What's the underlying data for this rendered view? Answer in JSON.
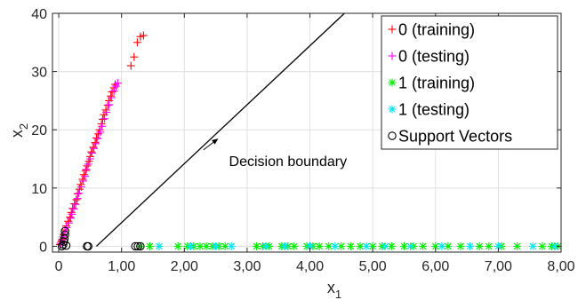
{
  "chart_data": {
    "type": "scatter",
    "xlabel": "x",
    "xlabel_sub": "1",
    "ylabel": "x",
    "ylabel_sub": "2",
    "xlim": [
      -0.1,
      8.0
    ],
    "ylim": [
      -1,
      40
    ],
    "xticks": [
      0,
      1,
      2,
      3,
      4,
      5,
      6,
      7,
      8
    ],
    "xtick_labels": [
      "0",
      "1,00",
      "2,00",
      "3,00",
      "4,00",
      "5,00",
      "6,00",
      "7,00",
      "8,00"
    ],
    "yticks": [
      0,
      10,
      20,
      30,
      40
    ],
    "ytick_labels": [
      "0",
      "10",
      "20",
      "30",
      "40"
    ],
    "grid": true,
    "legend_position": "top-right",
    "series": [
      {
        "name": "0 (training)",
        "marker": "plus",
        "color": "#ff0000",
        "points": [
          [
            0.02,
            0.3
          ],
          [
            0.04,
            0.8
          ],
          [
            0.06,
            1.2
          ],
          [
            0.08,
            2.0
          ],
          [
            0.1,
            2.8
          ],
          [
            0.12,
            3.5
          ],
          [
            0.15,
            4.3
          ],
          [
            0.18,
            5.0
          ],
          [
            0.2,
            5.8
          ],
          [
            0.22,
            6.5
          ],
          [
            0.25,
            7.3
          ],
          [
            0.28,
            8.0
          ],
          [
            0.3,
            9.0
          ],
          [
            0.33,
            9.8
          ],
          [
            0.35,
            10.6
          ],
          [
            0.38,
            11.5
          ],
          [
            0.4,
            12.3
          ],
          [
            0.43,
            13.0
          ],
          [
            0.45,
            13.8
          ],
          [
            0.48,
            14.6
          ],
          [
            0.5,
            15.4
          ],
          [
            0.52,
            16.2
          ],
          [
            0.55,
            17.0
          ],
          [
            0.58,
            17.8
          ],
          [
            0.6,
            18.6
          ],
          [
            0.63,
            19.3
          ],
          [
            0.65,
            20.0
          ],
          [
            0.68,
            21.0
          ],
          [
            0.7,
            21.8
          ],
          [
            0.72,
            22.6
          ],
          [
            0.75,
            23.4
          ],
          [
            0.78,
            24.2
          ],
          [
            0.8,
            25.0
          ],
          [
            0.83,
            25.8
          ],
          [
            0.85,
            26.5
          ],
          [
            0.88,
            27.2
          ],
          [
            0.9,
            27.8
          ],
          [
            1.15,
            31.0
          ],
          [
            1.2,
            32.5
          ],
          [
            1.25,
            35.0
          ],
          [
            1.3,
            36.0
          ],
          [
            1.35,
            36.2
          ]
        ]
      },
      {
        "name": "0 (testing)",
        "marker": "plus",
        "color": "#ff00ff",
        "points": [
          [
            0.03,
            0.5
          ],
          [
            0.05,
            1.0
          ],
          [
            0.07,
            1.6
          ],
          [
            0.1,
            2.4
          ],
          [
            0.12,
            3.2
          ],
          [
            0.16,
            4.0
          ],
          [
            0.19,
            4.8
          ],
          [
            0.21,
            5.5
          ],
          [
            0.24,
            6.4
          ],
          [
            0.27,
            7.2
          ],
          [
            0.3,
            8.2
          ],
          [
            0.32,
            9.1
          ],
          [
            0.36,
            10.2
          ],
          [
            0.39,
            11.2
          ],
          [
            0.42,
            12.0
          ],
          [
            0.44,
            13.2
          ],
          [
            0.47,
            14.1
          ],
          [
            0.5,
            15.0
          ],
          [
            0.53,
            16.0
          ],
          [
            0.56,
            16.8
          ],
          [
            0.59,
            17.6
          ],
          [
            0.62,
            18.5
          ],
          [
            0.66,
            19.6
          ],
          [
            0.69,
            20.6
          ],
          [
            0.73,
            21.9
          ],
          [
            0.76,
            23.0
          ],
          [
            0.8,
            24.3
          ],
          [
            0.84,
            25.5
          ],
          [
            0.88,
            26.7
          ],
          [
            0.91,
            27.5
          ],
          [
            0.94,
            28.0
          ]
        ]
      },
      {
        "name": "1 (training)",
        "marker": "asterisk",
        "color": "#00ee00",
        "points": [
          [
            1.3,
            0
          ],
          [
            1.45,
            0
          ],
          [
            1.9,
            0
          ],
          [
            2.05,
            0
          ],
          [
            2.15,
            0
          ],
          [
            2.25,
            0
          ],
          [
            2.35,
            0
          ],
          [
            2.45,
            0
          ],
          [
            2.55,
            0
          ],
          [
            2.65,
            0
          ],
          [
            3.15,
            0
          ],
          [
            3.25,
            0
          ],
          [
            3.35,
            0
          ],
          [
            3.55,
            0
          ],
          [
            3.65,
            0
          ],
          [
            3.75,
            0
          ],
          [
            3.95,
            0
          ],
          [
            4.05,
            0
          ],
          [
            4.15,
            0
          ],
          [
            4.3,
            0
          ],
          [
            4.5,
            0
          ],
          [
            4.65,
            0
          ],
          [
            4.8,
            0
          ],
          [
            5.0,
            0
          ],
          [
            5.15,
            0
          ],
          [
            5.3,
            0
          ],
          [
            5.5,
            0
          ],
          [
            5.65,
            0
          ],
          [
            5.8,
            0
          ],
          [
            6.0,
            0
          ],
          [
            6.2,
            0
          ],
          [
            6.4,
            0
          ],
          [
            6.7,
            0
          ],
          [
            6.85,
            0
          ],
          [
            7.05,
            0
          ],
          [
            7.3,
            0
          ],
          [
            7.7,
            0
          ],
          [
            7.85,
            0
          ],
          [
            7.95,
            0
          ]
        ]
      },
      {
        "name": "1 (testing)",
        "marker": "asterisk",
        "color": "#00e5ee",
        "points": [
          [
            1.6,
            0
          ],
          [
            2.1,
            0
          ],
          [
            2.5,
            0
          ],
          [
            2.75,
            0
          ],
          [
            3.3,
            0
          ],
          [
            3.6,
            0
          ],
          [
            4.0,
            0
          ],
          [
            4.4,
            0
          ],
          [
            4.9,
            0
          ],
          [
            5.2,
            0
          ],
          [
            5.6,
            0
          ],
          [
            6.1,
            0
          ],
          [
            6.55,
            0
          ],
          [
            7.0,
            0
          ],
          [
            7.55,
            0
          ],
          [
            7.9,
            0
          ]
        ]
      },
      {
        "name": "Support Vectors",
        "marker": "circle",
        "color": "#000000",
        "points": [
          [
            0.05,
            0
          ],
          [
            0.07,
            0.3
          ],
          [
            0.08,
            0.8
          ],
          [
            0.09,
            1.3
          ],
          [
            0.1,
            2.0
          ],
          [
            0.1,
            2.6
          ],
          [
            0.12,
            0.1
          ],
          [
            0.45,
            0
          ],
          [
            0.47,
            0
          ],
          [
            1.22,
            0
          ],
          [
            1.26,
            0
          ],
          [
            1.3,
            0
          ]
        ]
      }
    ],
    "decision_boundary": {
      "x": [
        0.6,
        4.55
      ],
      "y": [
        0,
        40
      ],
      "color": "#000000"
    },
    "annotations": [
      {
        "text": "Decision boundary",
        "x": 3.65,
        "y": 13.8,
        "arrow_to": [
          2.5,
          18.7
        ]
      }
    ]
  }
}
